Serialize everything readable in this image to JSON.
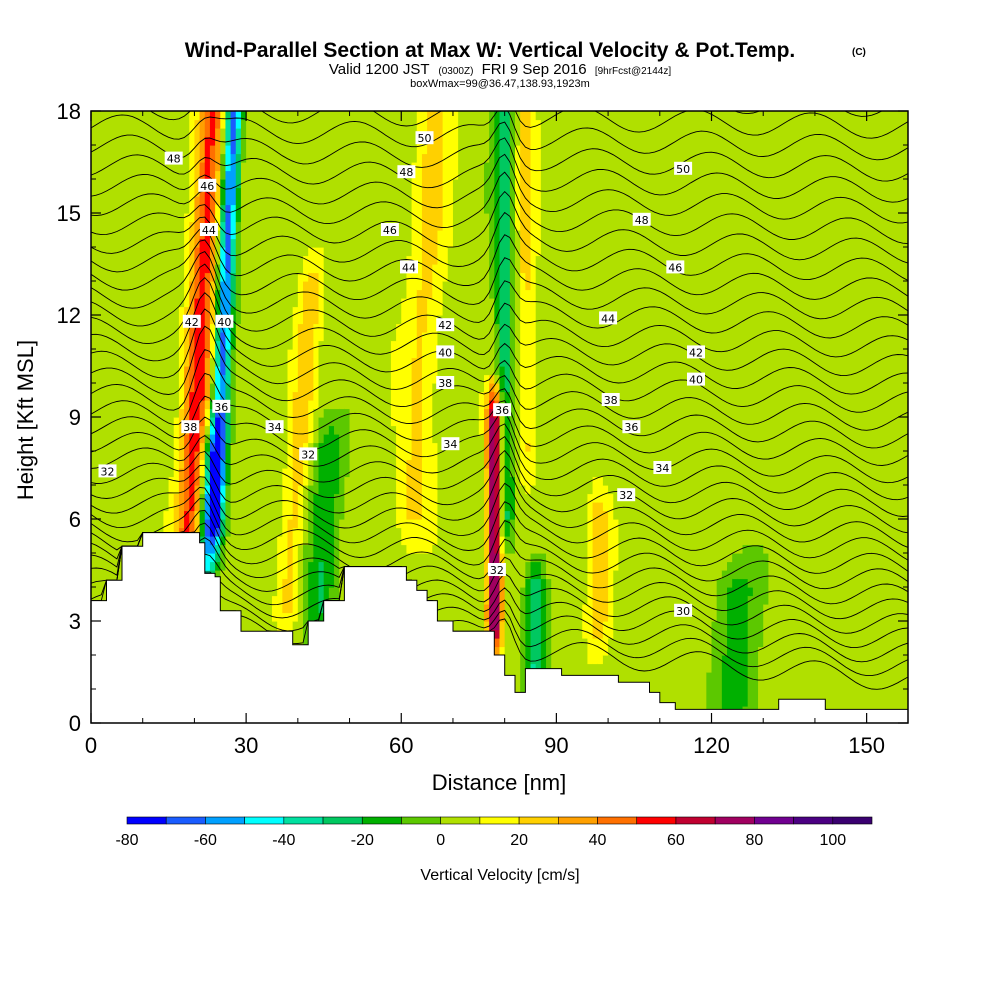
{
  "chart_data": {
    "type": "heatmap",
    "title": "Wind-Parallel Section at Max W: Vertical Velocity & Pot.Temp.",
    "title_suffix": "(C)",
    "subtitle_main": "Valid 1200 JST",
    "subtitle_utc": "(0300Z)",
    "subtitle_date": "FRI 9 Sep 2016",
    "subtitle_fcst": "[9hrFcst@2144z]",
    "subtitle_box": "boxWmax=99@36.47,138.93,1923m",
    "xlabel": "Distance [nm]",
    "ylabel": "Height [Kft MSL]",
    "xlim": [
      0,
      158
    ],
    "ylim": [
      0,
      18
    ],
    "x_ticks": [
      0,
      30,
      60,
      90,
      120,
      150
    ],
    "y_ticks": [
      0,
      3,
      6,
      9,
      12,
      15,
      18
    ],
    "x_tick_labels": [
      "0",
      "30",
      "60",
      "90",
      "120",
      "150"
    ],
    "y_tick_labels": [
      "0",
      "3",
      "6",
      "9",
      "12",
      "15",
      "18"
    ],
    "colorbar": {
      "title": "Vertical Velocity [cm/s]",
      "min": -80,
      "max": 110,
      "step": 10,
      "tick_values": [
        -80,
        -60,
        -40,
        -20,
        0,
        20,
        40,
        60,
        80,
        100
      ],
      "tick_labels": [
        "-80",
        "-60",
        "-40",
        "-20",
        "0",
        "20",
        "40",
        "60",
        "80",
        "100"
      ],
      "colors": [
        "#0000ff",
        "#1a5cff",
        "#00a0ff",
        "#00ffff",
        "#00e0a0",
        "#00c860",
        "#00b000",
        "#5cc800",
        "#b0e000",
        "#ffff00",
        "#ffd000",
        "#ffa000",
        "#ff7000",
        "#ff0000",
        "#c00030",
        "#a00060",
        "#700090",
        "#4b0082",
        "#3a0070"
      ]
    },
    "background_w": 5,
    "updraft_bands": [
      {
        "x": 19,
        "w_max": 55,
        "width": 2.6,
        "height_range": [
          5.5,
          18
        ],
        "slant": 0.35
      },
      {
        "x": 38,
        "w_max": 25,
        "width": 2.2,
        "height_range": [
          3.5,
          13
        ],
        "slant": 0.5
      },
      {
        "x": 62,
        "w_max": 22,
        "width": 3.5,
        "height_range": [
          6,
          18
        ],
        "slant": 0.4
      },
      {
        "x": 78,
        "w_max": 90,
        "width": 1.4,
        "height_range": [
          3,
          9
        ],
        "slant": 0
      },
      {
        "x": 84,
        "w_max": 22,
        "width": 2,
        "height_range": [
          8,
          18
        ],
        "slant": 0
      },
      {
        "x": 98,
        "w_max": 30,
        "width": 2.2,
        "height_range": [
          3,
          6
        ],
        "slant": 0
      }
    ],
    "downdraft_bands": [
      {
        "x": 24,
        "w_min": -65,
        "width": 1.6,
        "height_range": [
          6,
          18
        ],
        "slant": 0.3
      },
      {
        "x": 22,
        "w_min": -40,
        "width": 2,
        "height_range": [
          4.5,
          8
        ],
        "slant": 0.5
      },
      {
        "x": 44,
        "w_min": -20,
        "width": 3,
        "height_range": [
          2.5,
          8
        ],
        "slant": 0.4
      },
      {
        "x": 80,
        "w_min": -25,
        "width": 2,
        "height_range": [
          6,
          18
        ],
        "slant": 0
      },
      {
        "x": 86,
        "w_min": -30,
        "width": 2,
        "height_range": [
          1.5,
          4
        ],
        "slant": 0
      },
      {
        "x": 125,
        "w_min": -15,
        "width": 4,
        "height_range": [
          0.5,
          4
        ],
        "slant": 0
      }
    ],
    "terrain_kft": [
      [
        0,
        3.6
      ],
      [
        3,
        4.2
      ],
      [
        6,
        5.2
      ],
      [
        10,
        5.6
      ],
      [
        19,
        5.6
      ],
      [
        21,
        5.3
      ],
      [
        22,
        4.4
      ],
      [
        24,
        4.3
      ],
      [
        25,
        3.3
      ],
      [
        29,
        2.7
      ],
      [
        39,
        2.3
      ],
      [
        42,
        3.0
      ],
      [
        45,
        3.6
      ],
      [
        49,
        4.6
      ],
      [
        59,
        4.6
      ],
      [
        61,
        4.2
      ],
      [
        63,
        3.9
      ],
      [
        65,
        3.6
      ],
      [
        67,
        3.0
      ],
      [
        70,
        2.7
      ],
      [
        77,
        2.7
      ],
      [
        78,
        2.0
      ],
      [
        80,
        1.4
      ],
      [
        82,
        0.9
      ],
      [
        84,
        1.6
      ],
      [
        91,
        1.4
      ],
      [
        102,
        1.2
      ],
      [
        108,
        0.9
      ],
      [
        110,
        0.6
      ],
      [
        113,
        0.4
      ],
      [
        131,
        0.4
      ],
      [
        133,
        0.7
      ],
      [
        142,
        0.4
      ],
      [
        158,
        0.4
      ]
    ],
    "theta_contours_c": [
      30,
      32,
      34,
      36,
      38,
      40,
      42,
      44,
      46,
      48,
      50
    ],
    "contour_labels": [
      {
        "value": "50",
        "x": 64.5,
        "y": 17.2
      },
      {
        "value": "48",
        "x": 16,
        "y": 16.6
      },
      {
        "value": "46",
        "x": 22.5,
        "y": 15.8
      },
      {
        "value": "48",
        "x": 61,
        "y": 16.2
      },
      {
        "value": "50",
        "x": 114.5,
        "y": 16.3
      },
      {
        "value": "48",
        "x": 106.5,
        "y": 14.8
      },
      {
        "value": "44",
        "x": 22.8,
        "y": 14.5
      },
      {
        "value": "46",
        "x": 57.8,
        "y": 14.5
      },
      {
        "value": "46",
        "x": 113,
        "y": 13.4
      },
      {
        "value": "44",
        "x": 61.5,
        "y": 13.4
      },
      {
        "value": "42",
        "x": 19.5,
        "y": 11.8
      },
      {
        "value": "40",
        "x": 25.8,
        "y": 11.8
      },
      {
        "value": "44",
        "x": 100,
        "y": 11.9
      },
      {
        "value": "42",
        "x": 68.5,
        "y": 11.7
      },
      {
        "value": "42",
        "x": 117,
        "y": 10.9
      },
      {
        "value": "40",
        "x": 68.5,
        "y": 10.9
      },
      {
        "value": "40",
        "x": 117,
        "y": 10.1
      },
      {
        "value": "38",
        "x": 68.5,
        "y": 10.0
      },
      {
        "value": "38",
        "x": 100.5,
        "y": 9.5
      },
      {
        "value": "36",
        "x": 25.2,
        "y": 9.3
      },
      {
        "value": "36",
        "x": 79.5,
        "y": 9.2
      },
      {
        "value": "34",
        "x": 35.5,
        "y": 8.7
      },
      {
        "value": "38",
        "x": 19.2,
        "y": 8.7
      },
      {
        "value": "36",
        "x": 104.5,
        "y": 8.7
      },
      {
        "value": "34",
        "x": 69.5,
        "y": 8.2
      },
      {
        "value": "32",
        "x": 42,
        "y": 7.9
      },
      {
        "value": "34",
        "x": 110.5,
        "y": 7.5
      },
      {
        "value": "32",
        "x": 3.2,
        "y": 7.4
      },
      {
        "value": "32",
        "x": 103.5,
        "y": 6.7
      },
      {
        "value": "32",
        "x": 78.5,
        "y": 4.5
      },
      {
        "value": "30",
        "x": 114.5,
        "y": 3.3
      }
    ]
  }
}
